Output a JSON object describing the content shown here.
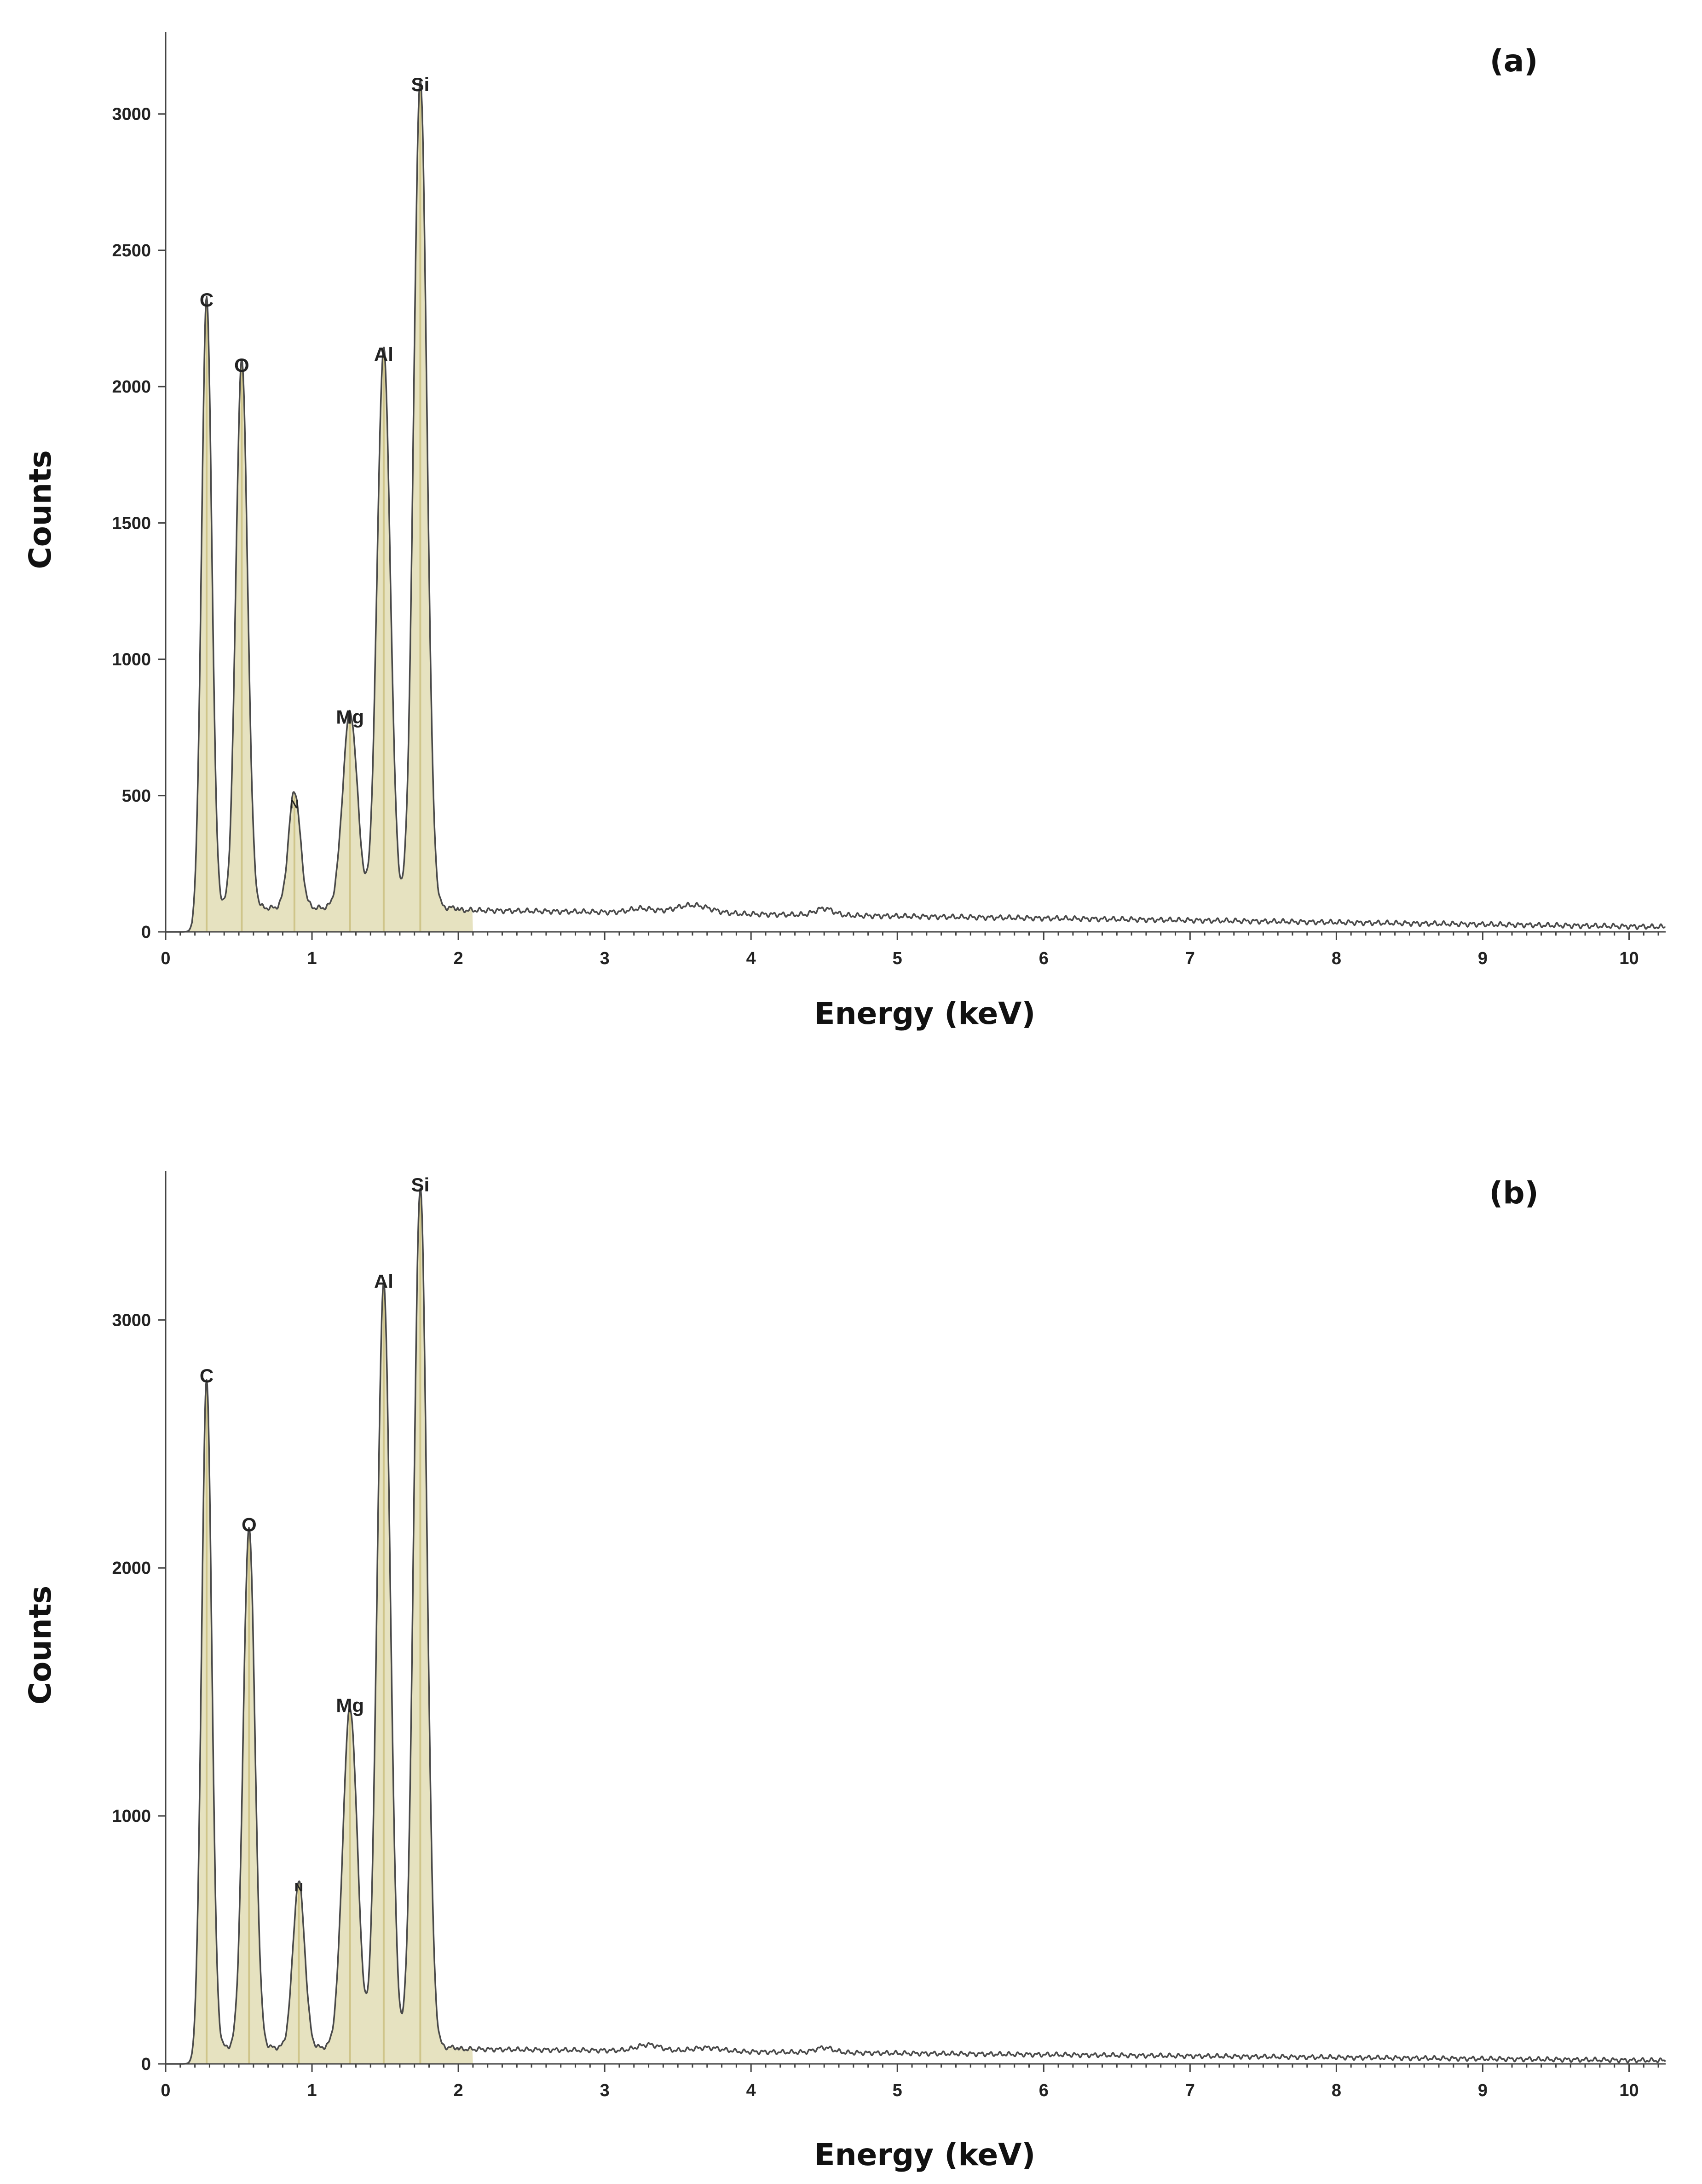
{
  "chart_data": [
    {
      "type": "line",
      "panel_label": "(a)",
      "xlabel": "Energy (keV)",
      "ylabel": "Counts",
      "xlim": [
        0,
        10.25
      ],
      "ylim": [
        0,
        3300
      ],
      "x_ticks": [
        0,
        1,
        2,
        3,
        4,
        5,
        6,
        7,
        8,
        9,
        10
      ],
      "x_tick_labels": [
        "0",
        "1",
        "2",
        "3",
        "4",
        "5",
        "6",
        "7",
        "8",
        "9",
        "10"
      ],
      "y_ticks": [
        0,
        500,
        1000,
        1500,
        2000,
        2500,
        3000
      ],
      "y_tick_labels": [
        "0",
        "500",
        "1000",
        "1500",
        "2000",
        "2500",
        "3000"
      ],
      "peaks": [
        {
          "element": "C",
          "energy": 0.28,
          "counts": 2250,
          "width": 0.035
        },
        {
          "element": "O",
          "energy": 0.52,
          "counts": 2010,
          "width": 0.04
        },
        {
          "element": "N",
          "energy": 0.88,
          "counts": 430,
          "width": 0.04
        },
        {
          "element": "Mg",
          "energy": 1.26,
          "counts": 720,
          "width": 0.05
        },
        {
          "element": "Al",
          "energy": 1.49,
          "counts": 2050,
          "width": 0.045
        },
        {
          "element": "Si",
          "energy": 1.74,
          "counts": 3040,
          "width": 0.045
        }
      ],
      "background": {
        "onset": 0.18,
        "level_at_2": 80,
        "level_at_10": 20
      },
      "minor_bumps": [
        {
          "energy": 3.25,
          "counts": 15,
          "width": 0.08
        },
        {
          "energy": 3.6,
          "counts": 30,
          "width": 0.12
        },
        {
          "energy": 4.5,
          "counts": 25,
          "width": 0.06
        }
      ]
    },
    {
      "type": "line",
      "panel_label": "(b)",
      "xlabel": "Energy (keV)",
      "ylabel": "Counts",
      "xlim": [
        0,
        10.25
      ],
      "ylim": [
        0,
        3600
      ],
      "x_ticks": [
        0,
        1,
        2,
        3,
        4,
        5,
        6,
        7,
        8,
        9,
        10
      ],
      "x_tick_labels": [
        "0",
        "1",
        "2",
        "3",
        "4",
        "5",
        "6",
        "7",
        "8",
        "9",
        "10"
      ],
      "y_ticks": [
        0,
        1000,
        2000,
        3000
      ],
      "y_tick_labels": [
        "0",
        "1000",
        "2000",
        "3000"
      ],
      "peaks": [
        {
          "element": "C",
          "energy": 0.28,
          "counts": 2700,
          "width": 0.035
        },
        {
          "element": "O",
          "energy": 0.57,
          "counts": 2100,
          "width": 0.04
        },
        {
          "element": "N",
          "energy": 0.91,
          "counts": 670,
          "width": 0.04
        },
        {
          "element": "Mg",
          "energy": 1.26,
          "counts": 1370,
          "width": 0.05
        },
        {
          "element": "Al",
          "energy": 1.49,
          "counts": 3080,
          "width": 0.045
        },
        {
          "element": "Si",
          "energy": 1.74,
          "counts": 3470,
          "width": 0.045
        }
      ],
      "background": {
        "onset": 0.18,
        "level_at_2": 60,
        "level_at_10": 15
      },
      "minor_bumps": [
        {
          "energy": 3.3,
          "counts": 25,
          "width": 0.08
        },
        {
          "energy": 3.7,
          "counts": 15,
          "width": 0.1
        },
        {
          "energy": 4.5,
          "counts": 20,
          "width": 0.06
        }
      ]
    }
  ]
}
